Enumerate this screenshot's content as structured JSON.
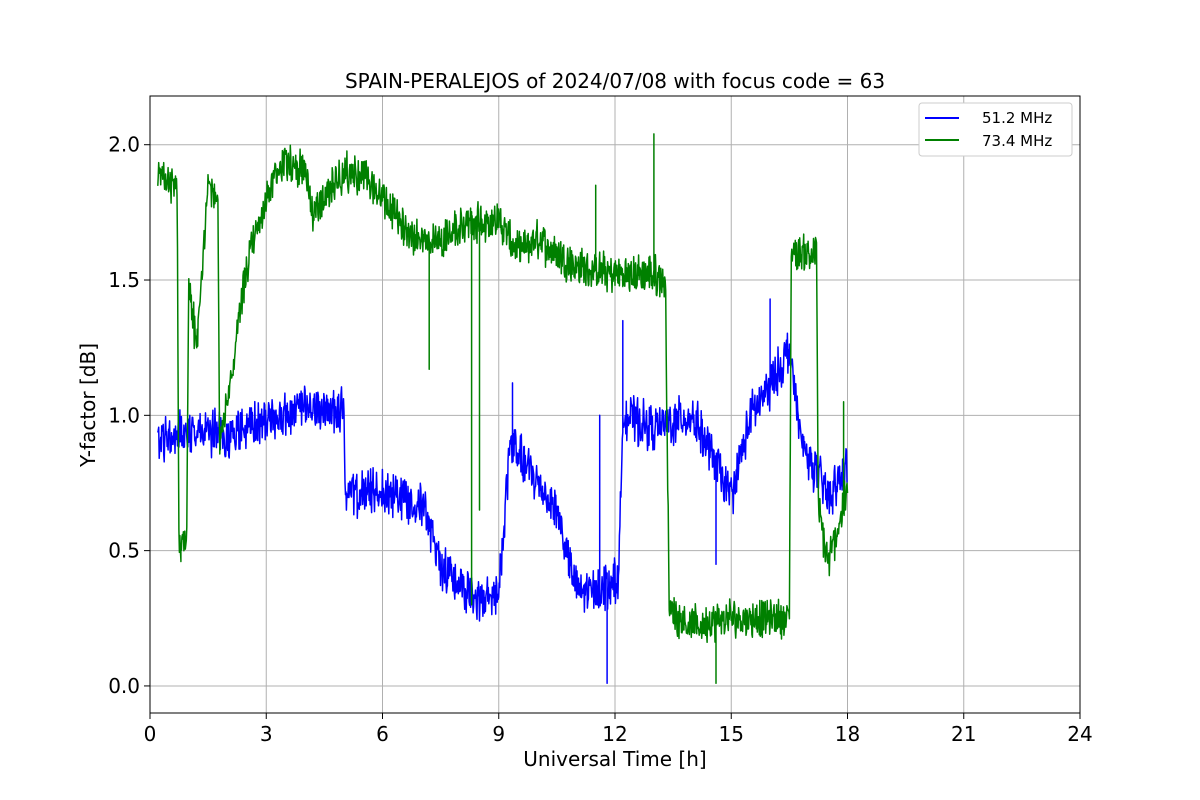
{
  "chart_data": {
    "type": "line",
    "title": "SPAIN-PERALEJOS of 2024/07/08 with focus code = 63",
    "xlabel": "Universal Time [h]",
    "ylabel": "Y-factor [dB]",
    "xlim": [
      0,
      24
    ],
    "ylim": [
      -0.1,
      2.18
    ],
    "xticks": [
      0,
      3,
      6,
      9,
      12,
      15,
      18,
      21,
      24
    ],
    "xtick_labels": [
      "0",
      "3",
      "6",
      "9",
      "12",
      "15",
      "18",
      "21",
      "24"
    ],
    "yticks": [
      0.0,
      0.5,
      1.0,
      1.5,
      2.0
    ],
    "ytick_labels": [
      "0.0",
      "0.5",
      "1.0",
      "1.5",
      "2.0"
    ],
    "grid": true,
    "legend_position": "top-right",
    "series": [
      {
        "name": "51.2 MHz",
        "color": "#0000ff",
        "anchors": [
          [
            0.2,
            0.9
          ],
          [
            1.0,
            0.95
          ],
          [
            2.0,
            0.92
          ],
          [
            3.0,
            0.98
          ],
          [
            4.0,
            1.02
          ],
          [
            5.0,
            1.02
          ],
          [
            5.05,
            0.7
          ],
          [
            6.0,
            0.72
          ],
          [
            7.0,
            0.68
          ],
          [
            7.5,
            0.45
          ],
          [
            8.0,
            0.38
          ],
          [
            8.5,
            0.3
          ],
          [
            9.0,
            0.35
          ],
          [
            9.3,
            0.9
          ],
          [
            10.0,
            0.75
          ],
          [
            10.5,
            0.65
          ],
          [
            11.0,
            0.35
          ],
          [
            11.5,
            0.35
          ],
          [
            12.1,
            0.4
          ],
          [
            12.2,
            1.0
          ],
          [
            13.0,
            0.95
          ],
          [
            14.0,
            1.0
          ],
          [
            14.5,
            0.85
          ],
          [
            15.0,
            0.7
          ],
          [
            15.5,
            1.0
          ],
          [
            16.0,
            1.1
          ],
          [
            16.5,
            1.25
          ],
          [
            16.8,
            0.9
          ],
          [
            17.5,
            0.7
          ],
          [
            18.0,
            0.8
          ]
        ],
        "noise": 0.07,
        "spikes": [
          [
            9.35,
            1.12
          ],
          [
            11.6,
            1.0
          ],
          [
            11.8,
            0.01
          ],
          [
            12.2,
            1.35
          ],
          [
            14.6,
            0.45
          ],
          [
            16.0,
            1.43
          ]
        ]
      },
      {
        "name": "73.4 MHz",
        "color": "#008000",
        "anchors": [
          [
            0.2,
            1.88
          ],
          [
            0.7,
            1.85
          ],
          [
            0.75,
            0.5
          ],
          [
            0.95,
            0.55
          ],
          [
            1.0,
            1.5
          ],
          [
            1.2,
            1.25
          ],
          [
            1.5,
            1.85
          ],
          [
            1.75,
            1.8
          ],
          [
            1.8,
            0.9
          ],
          [
            2.0,
            1.05
          ],
          [
            2.5,
            1.55
          ],
          [
            3.0,
            1.8
          ],
          [
            3.5,
            1.95
          ],
          [
            4.0,
            1.9
          ],
          [
            4.2,
            1.75
          ],
          [
            5.0,
            1.9
          ],
          [
            5.5,
            1.88
          ],
          [
            6.0,
            1.8
          ],
          [
            6.5,
            1.7
          ],
          [
            7.0,
            1.65
          ],
          [
            7.5,
            1.65
          ],
          [
            8.0,
            1.7
          ],
          [
            9.0,
            1.72
          ],
          [
            9.5,
            1.6
          ],
          [
            10.0,
            1.65
          ],
          [
            11.0,
            1.55
          ],
          [
            12.0,
            1.52
          ],
          [
            13.0,
            1.52
          ],
          [
            13.3,
            1.5
          ],
          [
            13.4,
            0.28
          ],
          [
            14.0,
            0.22
          ],
          [
            15.0,
            0.25
          ],
          [
            16.5,
            0.25
          ],
          [
            16.55,
            1.6
          ],
          [
            17.2,
            1.6
          ],
          [
            17.25,
            0.65
          ],
          [
            17.5,
            0.45
          ],
          [
            18.0,
            0.72
          ]
        ],
        "noise": 0.06,
        "spikes": [
          [
            0.8,
            0.46
          ],
          [
            7.2,
            1.17
          ],
          [
            8.3,
            0.3
          ],
          [
            8.5,
            0.65
          ],
          [
            11.5,
            1.85
          ],
          [
            13.0,
            2.04
          ],
          [
            14.6,
            0.01
          ],
          [
            17.9,
            1.05
          ]
        ]
      }
    ]
  }
}
